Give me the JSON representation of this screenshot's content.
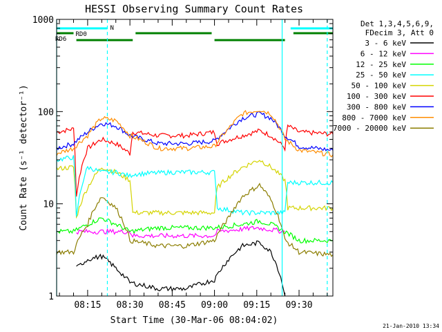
{
  "chart_data": {
    "type": "line",
    "title": "HESSI Observing Summary Count Rates",
    "xlabel": "Start Time (30-Mar-06 08:04:02)",
    "ylabel": "Count Rate (s⁻¹ detector⁻¹)",
    "y_scale": "log",
    "ylim": [
      1,
      1000
    ],
    "xlim": [
      "08:04",
      "09:42"
    ],
    "x_tick_labels": [
      "08:15",
      "08:30",
      "08:45",
      "09:00",
      "09:15",
      "09:30"
    ],
    "y_tick_labels": [
      "1",
      "10",
      "100",
      "1000"
    ],
    "timestamp": "21-Jan-2010 13:34",
    "legend": {
      "placement": "outside-right",
      "header": [
        "Det 1,3,4,5,6,9,",
        "FDecim 3, Att 0"
      ],
      "entries": [
        {
          "label": "3 - 6 keV",
          "color": "#000000"
        },
        {
          "label": "6 - 12 keV",
          "color": "#ff00ff"
        },
        {
          "label": "12 - 25 keV",
          "color": "#00ff00"
        },
        {
          "label": "25 - 50 keV",
          "color": "#00ffff"
        },
        {
          "label": "50 - 100 keV",
          "color": "#d4d400"
        },
        {
          "label": "100 - 300 keV",
          "color": "#ff0000"
        },
        {
          "label": "300 - 800 keV",
          "color": "#0000ff"
        },
        {
          "label": "800 - 7000 keV",
          "color": "#ff8c00"
        },
        {
          "label": "7000 - 20000 keV",
          "color": "#8b7d00"
        }
      ]
    },
    "flags": [
      {
        "label": "N",
        "color": "#00ffff",
        "segments": [
          [
            "08:04",
            "08:22"
          ],
          [
            "09:27",
            "09:42"
          ]
        ]
      },
      {
        "label": "RD0",
        "color": "#008000",
        "segments": [
          [
            "08:04",
            "08:10"
          ],
          [
            "08:32",
            "08:59"
          ],
          [
            "09:28",
            "09:42"
          ]
        ]
      },
      {
        "label": "RD6",
        "color": "#008000",
        "segments": [
          [
            "08:11",
            "08:31"
          ],
          [
            "09:00",
            "09:25"
          ]
        ]
      }
    ],
    "vlines_solid_cyan": [
      "08:04",
      "09:24"
    ],
    "vlines_dashed_cyan": [
      "08:22",
      "09:40"
    ],
    "series": [
      {
        "color": "#ff0000",
        "x": [
          "08:04",
          "08:10",
          "08:11",
          "08:15",
          "08:20",
          "08:25",
          "08:30",
          "08:31",
          "08:40",
          "08:50",
          "09:00",
          "09:01",
          "09:10",
          "09:16",
          "09:20",
          "09:25",
          "09:26",
          "09:30",
          "09:42"
        ],
        "y": [
          60,
          65,
          12,
          40,
          50,
          45,
          35,
          60,
          55,
          55,
          60,
          45,
          55,
          62,
          55,
          40,
          70,
          60,
          57
        ]
      },
      {
        "color": "#0000ff",
        "x": [
          "08:04",
          "08:10",
          "08:15",
          "08:20",
          "08:25",
          "08:30",
          "08:40",
          "08:50",
          "09:00",
          "09:05",
          "09:10",
          "09:16",
          "09:20",
          "09:25",
          "09:30",
          "09:42"
        ],
        "y": [
          40,
          45,
          60,
          75,
          70,
          55,
          45,
          45,
          48,
          65,
          85,
          95,
          85,
          55,
          42,
          38
        ]
      },
      {
        "color": "#ff8c00",
        "x": [
          "08:04",
          "08:10",
          "08:15",
          "08:20",
          "08:25",
          "08:30",
          "08:40",
          "08:50",
          "09:00",
          "09:05",
          "09:10",
          "09:16",
          "09:20",
          "09:25",
          "09:30",
          "09:42"
        ],
        "y": [
          35,
          40,
          55,
          85,
          80,
          55,
          40,
          40,
          42,
          65,
          95,
          105,
          95,
          50,
          38,
          34
        ]
      },
      {
        "color": "#d4d400",
        "x": [
          "08:04",
          "08:10",
          "08:11",
          "08:15",
          "08:20",
          "08:25",
          "08:30",
          "08:31",
          "08:45",
          "09:00",
          "09:01",
          "09:10",
          "09:16",
          "09:20",
          "09:25",
          "09:26",
          "09:42"
        ],
        "y": [
          24,
          25,
          7,
          15,
          25,
          22,
          18,
          8,
          8,
          8,
          15,
          25,
          30,
          25,
          18,
          9,
          9
        ]
      },
      {
        "color": "#00ffff",
        "x": [
          "08:04",
          "08:10",
          "08:11",
          "08:15",
          "08:20",
          "08:25",
          "08:30",
          "08:31",
          "08:45",
          "09:00",
          "09:01",
          "09:10",
          "09:16",
          "09:20",
          "09:25",
          "09:26",
          "09:42"
        ],
        "y": [
          30,
          32,
          7,
          25,
          22,
          22,
          20,
          21,
          22,
          22,
          9,
          8,
          8,
          8,
          8,
          17,
          17
        ]
      },
      {
        "color": "#00ff00",
        "x": [
          "08:04",
          "08:10",
          "08:15",
          "08:20",
          "08:25",
          "08:30",
          "08:40",
          "08:50",
          "09:00",
          "09:10",
          "09:16",
          "09:20",
          "09:25",
          "09:30",
          "09:42"
        ],
        "y": [
          5,
          5,
          6,
          7,
          6,
          5,
          5.5,
          5.5,
          5.5,
          6,
          6.5,
          6,
          5,
          4,
          4
        ]
      },
      {
        "color": "#ff00ff",
        "x": [
          "08:11",
          "08:20",
          "08:30",
          "08:31",
          "08:45",
          "09:00",
          "09:01",
          "09:15",
          "09:25"
        ],
        "y": [
          5,
          5,
          5,
          4.5,
          4.5,
          4.5,
          5,
          5.5,
          5
        ]
      },
      {
        "color": "#8b7d00",
        "x": [
          "08:04",
          "08:10",
          "08:15",
          "08:20",
          "08:25",
          "08:30",
          "08:40",
          "08:50",
          "09:00",
          "09:05",
          "09:10",
          "09:16",
          "09:20",
          "09:25",
          "09:30",
          "09:42"
        ],
        "y": [
          3,
          3,
          6,
          12,
          9,
          4,
          3.5,
          3.5,
          4,
          7,
          12,
          16,
          11,
          4,
          3,
          2.8
        ]
      },
      {
        "color": "#000000",
        "x": [
          "08:11",
          "08:15",
          "08:20",
          "08:25",
          "08:30",
          "08:40",
          "08:50",
          "09:00",
          "09:05",
          "09:10",
          "09:16",
          "09:20",
          "09:25"
        ],
        "y": [
          2,
          2.5,
          2.7,
          2,
          1.4,
          1.2,
          1.2,
          1.5,
          2.5,
          3.5,
          3.8,
          3,
          1
        ]
      }
    ]
  }
}
